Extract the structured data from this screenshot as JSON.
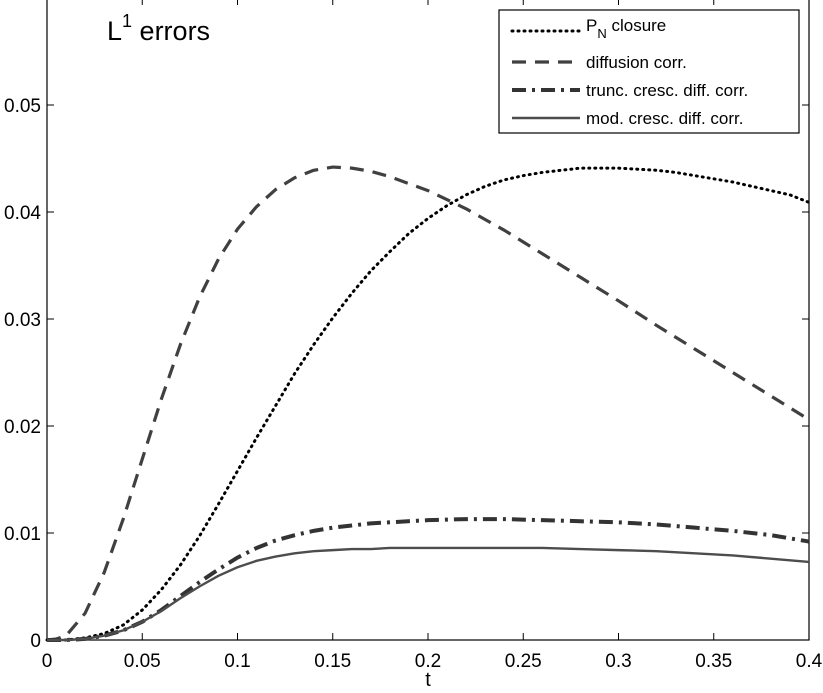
{
  "chart_data": {
    "type": "line",
    "title": "L",
    "title_superscript": "1",
    "title_suffix": " errors",
    "xlabel": "t",
    "ylabel": "",
    "xlim": [
      0,
      0.4
    ],
    "ylim": [
      0,
      0.06
    ],
    "xticks": [
      0,
      0.05,
      0.1,
      0.15,
      0.2,
      0.25,
      0.3,
      0.35,
      0.4
    ],
    "xtick_labels": [
      "0",
      "0.05",
      "0.1",
      "0.15",
      "0.2",
      "0.25",
      "0.3",
      "0.35",
      "0.4"
    ],
    "yticks": [
      0,
      0.01,
      0.02,
      0.03,
      0.04,
      0.05
    ],
    "ytick_labels": [
      "0",
      "0.01",
      "0.02",
      "0.03",
      "0.04",
      "0.05"
    ],
    "grid": false,
    "legend_position": "top-right",
    "series": [
      {
        "name": "P",
        "name_subscript": "N",
        "name_suffix": " closure",
        "style": "dotted",
        "color": "#000000",
        "x": [
          0,
          0.01,
          0.02,
          0.03,
          0.04,
          0.05,
          0.06,
          0.07,
          0.08,
          0.09,
          0.1,
          0.11,
          0.12,
          0.13,
          0.14,
          0.15,
          0.16,
          0.17,
          0.18,
          0.19,
          0.2,
          0.21,
          0.22,
          0.23,
          0.24,
          0.25,
          0.26,
          0.27,
          0.28,
          0.29,
          0.3,
          0.31,
          0.32,
          0.33,
          0.34,
          0.35,
          0.36,
          0.37,
          0.38,
          0.39,
          0.4
        ],
        "values": [
          0,
          0,
          0.0002,
          0.0006,
          0.0014,
          0.0028,
          0.0047,
          0.007,
          0.0097,
          0.0127,
          0.0158,
          0.0189,
          0.0219,
          0.0249,
          0.0276,
          0.0301,
          0.0324,
          0.0345,
          0.0363,
          0.038,
          0.0394,
          0.0406,
          0.0416,
          0.0424,
          0.043,
          0.0434,
          0.0437,
          0.0439,
          0.0441,
          0.0441,
          0.0441,
          0.044,
          0.0439,
          0.0437,
          0.0434,
          0.0431,
          0.0428,
          0.0424,
          0.042,
          0.0416,
          0.0409
        ]
      },
      {
        "name": "diffusion corr.",
        "style": "dashed",
        "color": "#404040",
        "x": [
          0,
          0.005,
          0.01,
          0.02,
          0.03,
          0.04,
          0.05,
          0.06,
          0.07,
          0.08,
          0.09,
          0.1,
          0.11,
          0.12,
          0.13,
          0.14,
          0.15,
          0.16,
          0.17,
          0.18,
          0.2,
          0.22,
          0.24,
          0.26,
          0.28,
          0.3,
          0.32,
          0.34,
          0.36,
          0.38,
          0.4
        ],
        "values": [
          0,
          0.0001,
          0.0004,
          0.0025,
          0.0063,
          0.0113,
          0.0169,
          0.0225,
          0.0276,
          0.032,
          0.0356,
          0.0384,
          0.0405,
          0.0421,
          0.0432,
          0.0439,
          0.0442,
          0.0441,
          0.0438,
          0.0433,
          0.042,
          0.0403,
          0.0383,
          0.0361,
          0.0339,
          0.0317,
          0.0294,
          0.0272,
          0.025,
          0.0228,
          0.0206
        ]
      },
      {
        "name": "trunc. cresc. diff. corr.",
        "style": "dashdot",
        "color": "#333333",
        "x": [
          0,
          0.01,
          0.02,
          0.03,
          0.04,
          0.05,
          0.06,
          0.07,
          0.08,
          0.09,
          0.1,
          0.11,
          0.12,
          0.13,
          0.14,
          0.15,
          0.16,
          0.17,
          0.18,
          0.2,
          0.22,
          0.24,
          0.26,
          0.28,
          0.3,
          0.32,
          0.34,
          0.36,
          0.38,
          0.4
        ],
        "values": [
          0,
          0,
          0.0001,
          0.0004,
          0.0009,
          0.0017,
          0.0028,
          0.0041,
          0.0054,
          0.0066,
          0.0077,
          0.0086,
          0.0093,
          0.0098,
          0.0102,
          0.0105,
          0.0107,
          0.0109,
          0.011,
          0.0112,
          0.0113,
          0.0113,
          0.0112,
          0.0111,
          0.011,
          0.0108,
          0.0105,
          0.0102,
          0.0098,
          0.0092
        ]
      },
      {
        "name": "mod. cresc. diff. corr.",
        "style": "solid",
        "color": "#4d4d4d",
        "x": [
          0,
          0.01,
          0.02,
          0.03,
          0.04,
          0.05,
          0.06,
          0.07,
          0.08,
          0.09,
          0.1,
          0.11,
          0.12,
          0.13,
          0.14,
          0.15,
          0.16,
          0.17,
          0.18,
          0.2,
          0.22,
          0.24,
          0.26,
          0.28,
          0.3,
          0.32,
          0.34,
          0.36,
          0.38,
          0.4
        ],
        "values": [
          0,
          0,
          0.0001,
          0.0004,
          0.0009,
          0.0017,
          0.0027,
          0.0039,
          0.005,
          0.006,
          0.0068,
          0.0074,
          0.0078,
          0.0081,
          0.0083,
          0.0084,
          0.0085,
          0.0085,
          0.0086,
          0.0086,
          0.0086,
          0.0086,
          0.0086,
          0.0085,
          0.0084,
          0.0083,
          0.0081,
          0.0079,
          0.0076,
          0.0073
        ]
      }
    ]
  }
}
